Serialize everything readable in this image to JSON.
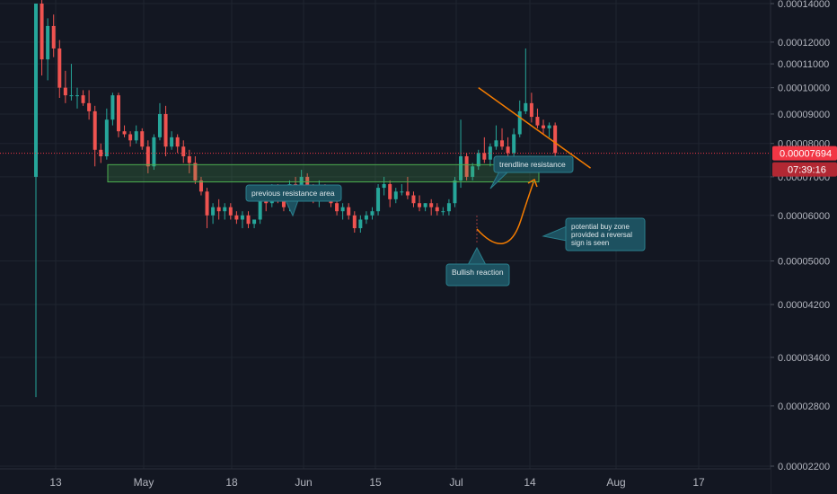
{
  "chart_data": {
    "type": "candlestick",
    "y_scale": "log",
    "ylim": [
      2.2e-05,
      0.00014
    ],
    "price_axis": {
      "ticks": [
        "0.00014000",
        "0.00012000",
        "0.00011000",
        "0.00010000",
        "0.00009000",
        "0.00008000",
        "0.00007000",
        "0.00006000",
        "0.00005000",
        "0.00004200",
        "0.00003400",
        "0.00002800",
        "0.00002200"
      ],
      "tick_values": [
        0.00014,
        0.00012,
        0.00011,
        0.0001,
        9e-05,
        8e-05,
        7e-05,
        6e-05,
        5e-05,
        4.2e-05,
        3.4e-05,
        2.8e-05,
        2.2e-05
      ]
    },
    "time_axis": {
      "labels": [
        "13",
        "May",
        "18",
        "Jun",
        "15",
        "Jul",
        "14",
        "Aug",
        "17"
      ]
    },
    "current_price": {
      "value": 7.694e-05,
      "label": "0.00007694",
      "countdown": "07:39:16",
      "color": "#f23645"
    },
    "colors": {
      "up": "#26a69a",
      "down": "#ef5350",
      "zone": "#4caf50",
      "trendline": "#f57c00",
      "callout": "#1d5160"
    },
    "candles": [
      [
        7e-05,
        0.00014,
        2.9e-05,
        0.00014
      ],
      [
        0.00014,
        0.000142,
        0.000105,
        0.000112
      ],
      [
        0.000112,
        0.000132,
        0.000103,
        0.000128
      ],
      [
        0.000128,
        0.000134,
        0.000113,
        0.000117
      ],
      [
        0.000117,
        0.000121,
        9.6e-05,
        0.0001
      ],
      [
        0.0001,
        0.000107,
        9.4e-05,
        9.7e-05
      ],
      [
        9.7e-05,
        0.00011,
        9.5e-05,
        9.7e-05
      ],
      [
        9.7e-05,
        0.0001,
        9.2e-05,
        9.7e-05
      ],
      [
        9.7e-05,
        9.9e-05,
        9.3e-05,
        9.4e-05
      ],
      [
        9.4e-05,
        9.9e-05,
        8.8e-05,
        9.1e-05
      ],
      [
        9.1e-05,
        9.3e-05,
        7.3e-05,
        7.8e-05
      ],
      [
        7.8e-05,
        8e-05,
        7.4e-05,
        7.6e-05
      ],
      [
        7.6e-05,
        9.2e-05,
        7.5e-05,
        8.8e-05
      ],
      [
        8.8e-05,
        9.8e-05,
        8.6e-05,
        9.7e-05
      ],
      [
        9.7e-05,
        9.8e-05,
        8.2e-05,
        8.4e-05
      ],
      [
        8.4e-05,
        8.6e-05,
        8.2e-05,
        8.3e-05
      ],
      [
        8.3e-05,
        8.4e-05,
        7.9e-05,
        8.1e-05
      ],
      [
        8.1e-05,
        8.6e-05,
        8e-05,
        8.4e-05
      ],
      [
        8.4e-05,
        8.5e-05,
        7.8e-05,
        7.9e-05
      ],
      [
        7.9e-05,
        8.1e-05,
        7.1e-05,
        7.3e-05
      ],
      [
        7.3e-05,
        8.3e-05,
        7.2e-05,
        8.2e-05
      ],
      [
        8.2e-05,
        9.4e-05,
        8.1e-05,
        9e-05
      ],
      [
        9e-05,
        9.3e-05,
        7.6e-05,
        7.9e-05
      ],
      [
        7.9e-05,
        8.4e-05,
        7.8e-05,
        8.2e-05
      ],
      [
        8.2e-05,
        8.3e-05,
        7.7e-05,
        7.9e-05
      ],
      [
        7.9e-05,
        8.1e-05,
        7.4e-05,
        7.6e-05
      ],
      [
        7.6e-05,
        7.8e-05,
        7.1e-05,
        7.4e-05
      ],
      [
        7.4e-05,
        7.6e-05,
        6.8e-05,
        6.9e-05
      ],
      [
        6.9e-05,
        7e-05,
        6.5e-05,
        6.6e-05
      ],
      [
        6.6e-05,
        6.7e-05,
        5.7e-05,
        6e-05
      ],
      [
        6e-05,
        6.3e-05,
        5.8e-05,
        6.2e-05
      ],
      [
        6.2e-05,
        6.4e-05,
        5.9e-05,
        6.1e-05
      ],
      [
        6.1e-05,
        6.3e-05,
        5.9e-05,
        6.2e-05
      ],
      [
        6.2e-05,
        6.3e-05,
        5.9e-05,
        6e-05
      ],
      [
        6e-05,
        6.1e-05,
        5.8e-05,
        5.9e-05
      ],
      [
        5.9e-05,
        6.1e-05,
        5.7e-05,
        6e-05
      ],
      [
        6e-05,
        6.1e-05,
        5.7e-05,
        5.8e-05
      ],
      [
        5.8e-05,
        5.9e-05,
        5.7e-05,
        5.9e-05
      ],
      [
        5.9e-05,
        6.5e-05,
        5.8e-05,
        6.4e-05
      ],
      [
        6.4e-05,
        6.5e-05,
        6.1e-05,
        6.3e-05
      ],
      [
        6.3e-05,
        6.8e-05,
        6.2e-05,
        6.7e-05
      ],
      [
        6.7e-05,
        6.8e-05,
        6.3e-05,
        6.4e-05
      ],
      [
        6.4e-05,
        6.5e-05,
        6.1e-05,
        6.2e-05
      ],
      [
        6.2e-05,
        6.9e-05,
        6.1e-05,
        6.8e-05
      ],
      [
        6.8e-05,
        7e-05,
        6.5e-05,
        6.6e-05
      ],
      [
        6.6e-05,
        7.2e-05,
        6.5e-05,
        7e-05
      ],
      [
        7e-05,
        7.1e-05,
        6.6e-05,
        6.7e-05
      ],
      [
        6.7e-05,
        6.8e-05,
        6.3e-05,
        6.4e-05
      ],
      [
        6.4e-05,
        6.9e-05,
        6.2e-05,
        6.7e-05
      ],
      [
        6.7e-05,
        6.8e-05,
        6.4e-05,
        6.5e-05
      ],
      [
        6.5e-05,
        6.6e-05,
        6.2e-05,
        6.3e-05
      ],
      [
        6.3e-05,
        6.4e-05,
        6e-05,
        6.1e-05
      ],
      [
        6.1e-05,
        6.3e-05,
        5.9e-05,
        6.2e-05
      ],
      [
        6.2e-05,
        6.3e-05,
        5.9e-05,
        6e-05
      ],
      [
        6e-05,
        6.1e-05,
        5.6e-05,
        5.7e-05
      ],
      [
        5.7e-05,
        6e-05,
        5.6e-05,
        5.9e-05
      ],
      [
        5.9e-05,
        6.1e-05,
        5.8e-05,
        6e-05
      ],
      [
        6e-05,
        6.2e-05,
        5.9e-05,
        6.1e-05
      ],
      [
        6.1e-05,
        6.8e-05,
        6e-05,
        6.7e-05
      ],
      [
        6.7e-05,
        7e-05,
        6.5e-05,
        6.8e-05
      ],
      [
        6.8e-05,
        6.9e-05,
        6.2e-05,
        6.4e-05
      ],
      [
        6.4e-05,
        6.7e-05,
        6.3e-05,
        6.6e-05
      ],
      [
        6.6e-05,
        6.8e-05,
        6.5e-05,
        6.6e-05
      ],
      [
        6.6e-05,
        7e-05,
        6.4e-05,
        6.5e-05
      ],
      [
        6.5e-05,
        6.6e-05,
        6.2e-05,
        6.3e-05
      ],
      [
        6.3e-05,
        6.5e-05,
        6.1e-05,
        6.2e-05
      ],
      [
        6.2e-05,
        6.3e-05,
        6.1e-05,
        6.3e-05
      ],
      [
        6.3e-05,
        6.4e-05,
        6e-05,
        6.2e-05
      ],
      [
        6.2e-05,
        6.3e-05,
        6e-05,
        6.1e-05
      ],
      [
        6.1e-05,
        6.2e-05,
        6e-05,
        6.1e-05
      ],
      [
        6.1e-05,
        6.4e-05,
        6e-05,
        6.3e-05
      ],
      [
        6.3e-05,
        7e-05,
        6.2e-05,
        6.9e-05
      ],
      [
        6.9e-05,
        8.8e-05,
        6.7e-05,
        7.6e-05
      ],
      [
        7.6e-05,
        7.7e-05,
        6.9e-05,
        7e-05
      ],
      [
        7e-05,
        7.4e-05,
        6.9e-05,
        7.3e-05
      ],
      [
        7.3e-05,
        7.8e-05,
        7.2e-05,
        7.7e-05
      ],
      [
        7.7e-05,
        8.2e-05,
        7.4e-05,
        7.5e-05
      ],
      [
        7.5e-05,
        8e-05,
        7.3e-05,
        7.9e-05
      ],
      [
        7.9e-05,
        8.6e-05,
        7.8e-05,
        8.1e-05
      ],
      [
        8.1e-05,
        8.5e-05,
        7.8e-05,
        7.9e-05
      ],
      [
        7.9e-05,
        8.2e-05,
        7.4e-05,
        7.7e-05
      ],
      [
        7.7e-05,
        8.5e-05,
        7.5e-05,
        8.3e-05
      ],
      [
        8.3e-05,
        9.5e-05,
        8.2e-05,
        9.1e-05
      ],
      [
        9.1e-05,
        0.000117,
        9e-05,
        9.4e-05
      ],
      [
        9.4e-05,
        9.8e-05,
        8.7e-05,
        8.9e-05
      ],
      [
        8.9e-05,
        9.2e-05,
        8.5e-05,
        8.6e-05
      ],
      [
        8.6e-05,
        8.8e-05,
        8.3e-05,
        8.5e-05
      ],
      [
        8.5e-05,
        8.7e-05,
        8.2e-05,
        8.6e-05
      ],
      [
        8.6e-05,
        8.7e-05,
        7.4e-05,
        7.7e-05
      ]
    ],
    "annotations": {
      "previous_resistance": "previous resistance area",
      "trendline_resistance": "trendline resistance",
      "buy_zone": [
        "potential buy zone",
        "provided a reversal",
        "sign is seen"
      ],
      "bullish_reaction": "Bullish reaction"
    },
    "zone": {
      "top": 7.35e-05,
      "bottom": 6.86e-05
    },
    "trendline": [
      [
        75,
        0.0001
      ],
      [
        94,
        7.25e-05
      ]
    ]
  }
}
